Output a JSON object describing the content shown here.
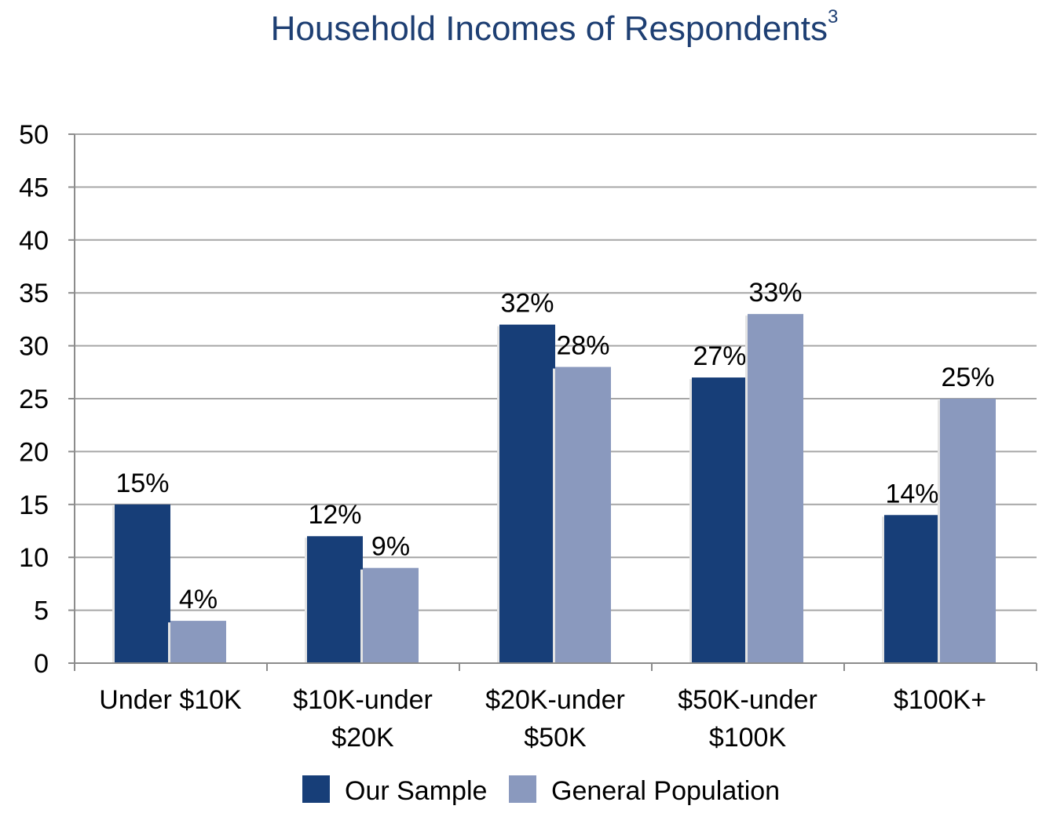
{
  "chart_data": {
    "type": "bar",
    "title": "Household Incomes of Respondents",
    "title_superscript": "3",
    "categories": [
      [
        "Under $10K"
      ],
      [
        "$10K-under",
        "$20K"
      ],
      [
        "$20K-under",
        "$50K"
      ],
      [
        "$50K-under",
        "$100K"
      ],
      [
        "$100K+"
      ]
    ],
    "series": [
      {
        "name": "Our Sample",
        "color": "#173e78",
        "values": [
          15,
          12,
          32,
          27,
          14
        ],
        "labels": [
          "15%",
          "12%",
          "32%",
          "27%",
          "14%"
        ]
      },
      {
        "name": "General Population",
        "color": "#8a99be",
        "values": [
          4,
          9,
          28,
          33,
          25
        ],
        "labels": [
          "4%",
          "9%",
          "28%",
          "33%",
          "25%"
        ]
      }
    ],
    "ylim": [
      0,
      50
    ],
    "yticks": [
      0,
      5,
      10,
      15,
      20,
      25,
      30,
      35,
      40,
      45,
      50
    ],
    "grid": true,
    "legend_position": "bottom"
  }
}
